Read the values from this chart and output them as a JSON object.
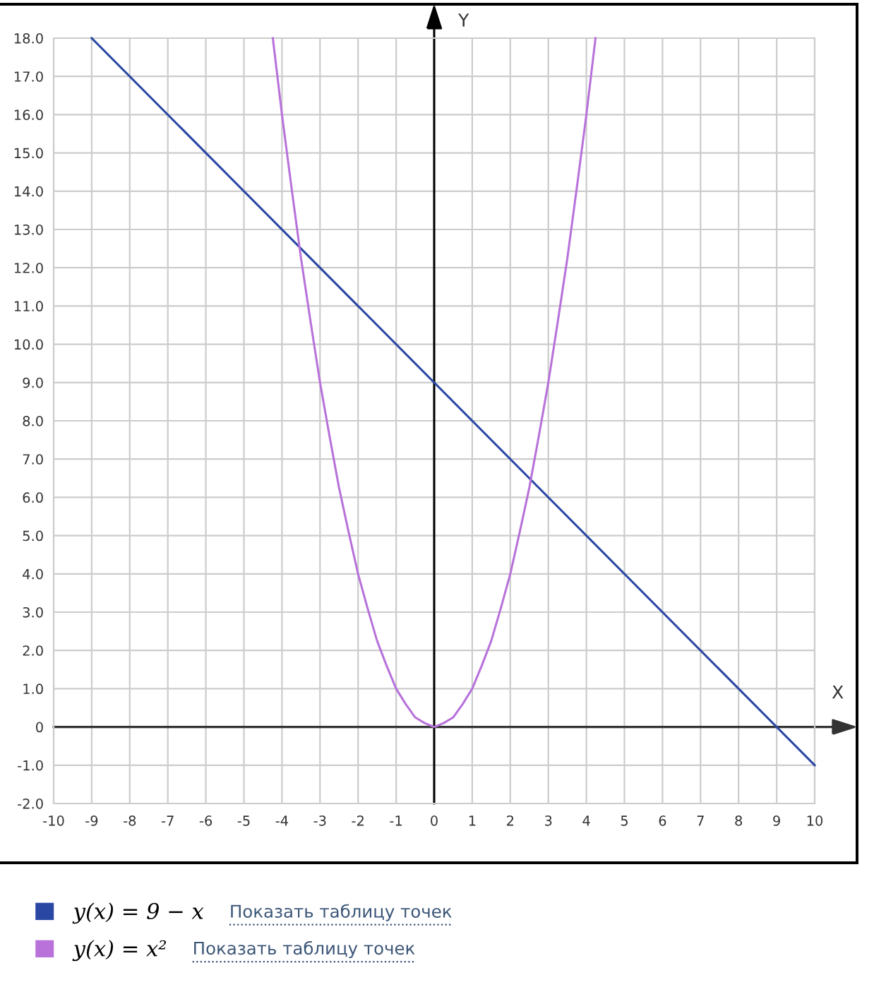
{
  "chart_data": {
    "type": "line",
    "xlabel": "X",
    "ylabel": "Y",
    "xlim": [
      -10,
      10
    ],
    "ylim": [
      -2,
      18
    ],
    "xticks": [
      -10,
      -9,
      -8,
      -7,
      -6,
      -5,
      -4,
      -3,
      -2,
      -1,
      0,
      1,
      2,
      3,
      4,
      5,
      6,
      7,
      8,
      9,
      10
    ],
    "yticks": [
      {
        "value": -2,
        "label": "-2.0"
      },
      {
        "value": -1,
        "label": "-1.0"
      },
      0,
      {
        "value": 1,
        "label": "1.0"
      },
      {
        "value": 2,
        "label": "2.0"
      },
      {
        "value": 3,
        "label": "3.0"
      },
      {
        "value": 4,
        "label": "4.0"
      },
      {
        "value": 5,
        "label": "5.0"
      },
      {
        "value": 6,
        "label": "6.0"
      },
      {
        "value": 7,
        "label": "7.0"
      },
      {
        "value": 8,
        "label": "8.0"
      },
      {
        "value": 9,
        "label": "9.0"
      },
      {
        "value": 10,
        "label": "10.0"
      },
      {
        "value": 11,
        "label": "11.0"
      },
      {
        "value": 12,
        "label": "12.0"
      },
      {
        "value": 13,
        "label": "13.0"
      },
      {
        "value": 14,
        "label": "14.0"
      },
      {
        "value": 15,
        "label": "15.0"
      },
      {
        "value": 16,
        "label": "16.0"
      },
      {
        "value": 17,
        "label": "17.0"
      },
      {
        "value": 18,
        "label": "18.0"
      }
    ],
    "grid": true,
    "legend": "bottom",
    "ref_lines": [
      {
        "axis": "x",
        "value": 0,
        "color": "#000000"
      },
      {
        "axis": "y",
        "value": 0,
        "color": "#333333"
      }
    ],
    "series": [
      {
        "name": "y(x) = 9 − x",
        "color": "#2a47a4",
        "x": [
          -9,
          10
        ],
        "values": [
          18,
          -1
        ]
      },
      {
        "name": "y(x) = x²",
        "color": "#b872da",
        "x": [
          -4.24,
          -4,
          -3.75,
          -3.5,
          -3.25,
          -3,
          -2.75,
          -2.5,
          -2.25,
          -2,
          -1.75,
          -1.5,
          -1.25,
          -1,
          -0.75,
          -0.5,
          -0.25,
          0,
          0.25,
          0.5,
          0.75,
          1,
          1.25,
          1.5,
          1.75,
          2,
          2.25,
          2.5,
          2.75,
          3,
          3.25,
          3.5,
          3.75,
          4,
          4.24
        ],
        "values": [
          18.0,
          16.0,
          14.1,
          12.25,
          10.6,
          9.0,
          7.6,
          6.25,
          5.1,
          4.0,
          3.1,
          2.25,
          1.6,
          1.0,
          0.6,
          0.25,
          0.1,
          0,
          0.1,
          0.25,
          0.6,
          1.0,
          1.6,
          2.25,
          3.1,
          4.0,
          5.1,
          6.25,
          7.6,
          9.0,
          10.6,
          12.25,
          14.1,
          16.0,
          18.0
        ]
      }
    ],
    "annotations": [
      "Показать таблицу точек",
      "Показать таблицу точек"
    ]
  }
}
